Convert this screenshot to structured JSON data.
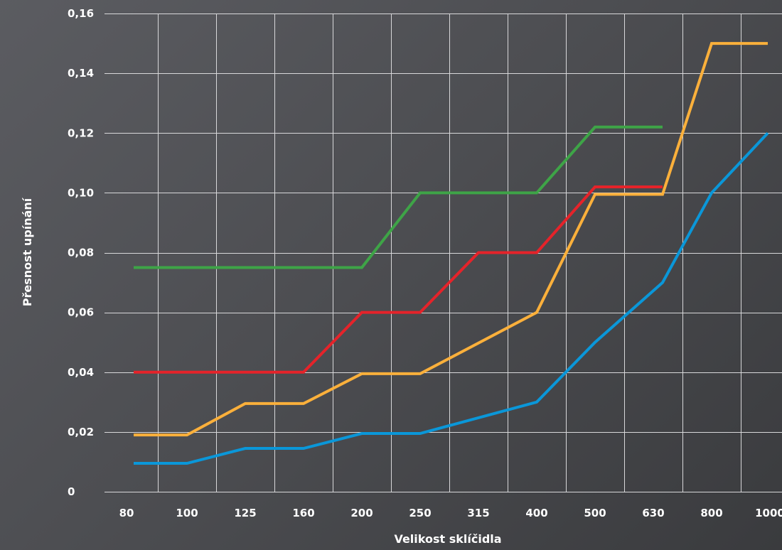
{
  "chart_data": {
    "type": "line",
    "title": "",
    "xlabel": "Velikost sklíčidla",
    "ylabel": "Přesnost upínání",
    "categories": [
      "80",
      "100",
      "125",
      "160",
      "200",
      "250",
      "315",
      "400",
      "500",
      "630",
      "800",
      "1000"
    ],
    "yticks": [
      "0",
      "0,02",
      "0,04",
      "0,06",
      "0,08",
      "0,10",
      "0,12",
      "0,14",
      "0,16"
    ],
    "ylim": [
      0,
      0.16
    ],
    "grid": true,
    "legend": "none",
    "series": [
      {
        "color": "#3ea447",
        "points": [
          [
            80,
            0.075
          ],
          [
            200,
            0.075
          ],
          [
            250,
            0.1
          ],
          [
            400,
            0.1
          ],
          [
            500,
            0.122
          ],
          [
            630,
            0.122
          ]
        ]
      },
      {
        "color": "#e5232a",
        "points": [
          [
            80,
            0.04
          ],
          [
            160,
            0.04
          ],
          [
            200,
            0.06
          ],
          [
            250,
            0.06
          ],
          [
            315,
            0.08
          ],
          [
            400,
            0.08
          ],
          [
            500,
            0.102
          ],
          [
            630,
            0.102
          ]
        ]
      },
      {
        "color": "#fbb03b",
        "points": [
          [
            80,
            0.019
          ],
          [
            100,
            0.019
          ],
          [
            125,
            0.0295
          ],
          [
            160,
            0.0295
          ],
          [
            200,
            0.0395
          ],
          [
            250,
            0.0395
          ],
          [
            400,
            0.06
          ],
          [
            500,
            0.0995
          ],
          [
            630,
            0.0995
          ],
          [
            800,
            0.15
          ],
          [
            1000,
            0.15
          ]
        ]
      },
      {
        "color": "#0a97d9",
        "points": [
          [
            80,
            0.0095
          ],
          [
            100,
            0.0095
          ],
          [
            125,
            0.0145
          ],
          [
            160,
            0.0145
          ],
          [
            200,
            0.0195
          ],
          [
            250,
            0.0195
          ],
          [
            400,
            0.03
          ],
          [
            500,
            0.05
          ],
          [
            630,
            0.07
          ],
          [
            800,
            0.1
          ],
          [
            1000,
            0.12
          ]
        ]
      }
    ]
  }
}
